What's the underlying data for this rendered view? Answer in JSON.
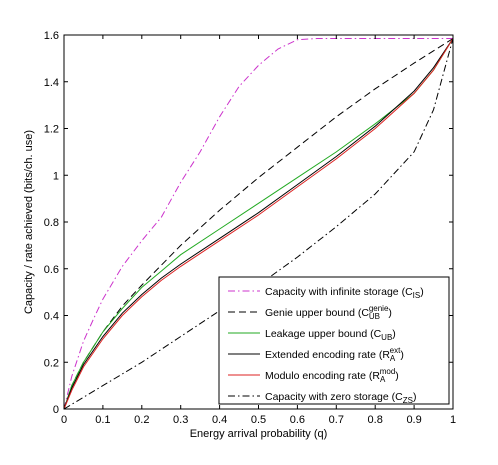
{
  "chart_data": {
    "type": "line",
    "xlabel": "Energy arrival probability (q)",
    "ylabel": "Capacity / rate achieved (bits/ch. use)",
    "xlim": [
      0,
      1
    ],
    "ylim": [
      0,
      1.6
    ],
    "xticks": [
      "0",
      "0.1",
      "0.2",
      "0.3",
      "0.4",
      "0.5",
      "0.6",
      "0.7",
      "0.8",
      "0.9",
      "1"
    ],
    "yticks": [
      "0",
      "0.2",
      "0.4",
      "0.6",
      "0.8",
      "1",
      "1.2",
      "1.4",
      "1.6"
    ],
    "grid": false,
    "legend_position": "bottom-right",
    "series": [
      {
        "name": "Capacity with infinite storage (C_IS)",
        "legend": {
          "text": "Capacity with infinite storage (C",
          "sub": "IS",
          "sup": "",
          "tail": ")"
        },
        "color": "#cc33cc",
        "dash": "dash-dot",
        "x": [
          0,
          0.02,
          0.05,
          0.08,
          0.1,
          0.15,
          0.2,
          0.25,
          0.3,
          0.35,
          0.4,
          0.45,
          0.5,
          0.55,
          0.6,
          0.65,
          0.7,
          0.8,
          0.9,
          1.0
        ],
        "y": [
          0,
          0.14,
          0.29,
          0.4,
          0.47,
          0.61,
          0.72,
          0.82,
          0.97,
          1.1,
          1.25,
          1.38,
          1.47,
          1.54,
          1.58,
          1.585,
          1.585,
          1.585,
          1.585,
          1.585
        ]
      },
      {
        "name": "Genie upper bound (C_UB^genie)",
        "legend": {
          "text": "Genie upper bound (C",
          "sub": "UB",
          "sup": "genie",
          "tail": ")"
        },
        "color": "#000000",
        "dash": "dashed",
        "x": [
          0,
          0.02,
          0.05,
          0.1,
          0.15,
          0.2,
          0.3,
          0.4,
          0.5,
          0.6,
          0.7,
          0.8,
          0.9,
          1.0
        ],
        "y": [
          0,
          0.1,
          0.2,
          0.33,
          0.44,
          0.53,
          0.7,
          0.85,
          0.99,
          1.12,
          1.25,
          1.37,
          1.48,
          1.585
        ]
      },
      {
        "name": "Leakage upper bound (C_UB)",
        "legend": {
          "text": "Leakage upper bound (C",
          "sub": "UB",
          "sup": "",
          "tail": ")"
        },
        "color": "#22aa22",
        "dash": "solid",
        "x": [
          0,
          0.02,
          0.05,
          0.1,
          0.15,
          0.2,
          0.25,
          0.3,
          0.4,
          0.5,
          0.6,
          0.7,
          0.8,
          0.9,
          0.95,
          1.0
        ],
        "y": [
          0,
          0.1,
          0.2,
          0.33,
          0.43,
          0.52,
          0.59,
          0.66,
          0.77,
          0.88,
          0.99,
          1.1,
          1.22,
          1.35,
          1.45,
          1.585
        ]
      },
      {
        "name": "Extended encoding rate (R_A^ext)",
        "legend": {
          "text": "Extended encoding rate (R",
          "sub": "A",
          "sup": "ext",
          "tail": ")"
        },
        "color": "#000000",
        "dash": "solid",
        "x": [
          0,
          0.02,
          0.05,
          0.1,
          0.15,
          0.2,
          0.25,
          0.3,
          0.4,
          0.5,
          0.6,
          0.7,
          0.8,
          0.9,
          0.95,
          1.0
        ],
        "y": [
          0,
          0.09,
          0.19,
          0.31,
          0.41,
          0.49,
          0.56,
          0.62,
          0.73,
          0.84,
          0.96,
          1.08,
          1.21,
          1.36,
          1.46,
          1.585
        ]
      },
      {
        "name": "Modulo encoding rate (R_A^mod)",
        "legend": {
          "text": "Modulo encoding rate (R",
          "sub": "A",
          "sup": "mod",
          "tail": ")"
        },
        "color": "#dd2222",
        "dash": "solid",
        "x": [
          0,
          0.02,
          0.05,
          0.1,
          0.15,
          0.2,
          0.25,
          0.3,
          0.4,
          0.5,
          0.6,
          0.7,
          0.8,
          0.9,
          0.95,
          1.0
        ],
        "y": [
          0,
          0.08,
          0.18,
          0.3,
          0.4,
          0.48,
          0.55,
          0.61,
          0.72,
          0.83,
          0.95,
          1.07,
          1.2,
          1.35,
          1.45,
          1.585
        ]
      },
      {
        "name": "Capacity with zero storage (C_ZS)",
        "legend": {
          "text": "Capacity with zero storage (C",
          "sub": "ZS",
          "sup": "",
          "tail": ")"
        },
        "color": "#000000",
        "dash": "dash-dot",
        "x": [
          0,
          0.1,
          0.2,
          0.3,
          0.4,
          0.5,
          0.6,
          0.7,
          0.8,
          0.9,
          0.95,
          1.0
        ],
        "y": [
          0,
          0.1,
          0.2,
          0.31,
          0.42,
          0.53,
          0.65,
          0.78,
          0.92,
          1.1,
          1.28,
          1.585
        ]
      }
    ]
  }
}
